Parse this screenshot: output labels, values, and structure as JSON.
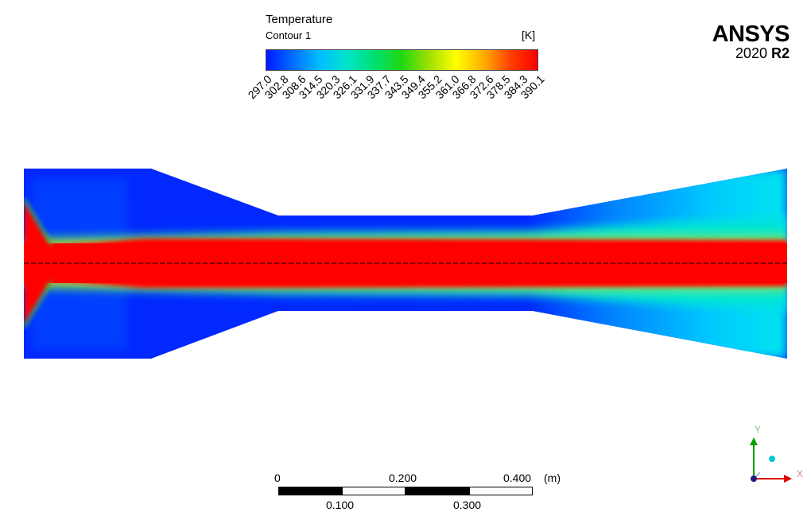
{
  "legend": {
    "title": "Temperature",
    "subtitle": "Contour 1",
    "unit": "[K]",
    "ticks": [
      "297.0",
      "302.8",
      "308.6",
      "314.5",
      "320.3",
      "326.1",
      "331.9",
      "337.7",
      "343.5",
      "349.4",
      "355.2",
      "361.0",
      "366.8",
      "372.6",
      "378.5",
      "384.3",
      "390.1"
    ],
    "colormap": [
      "#0018ff",
      "#0070ff",
      "#00c0ff",
      "#00e4c8",
      "#00e070",
      "#20d810",
      "#a0e000",
      "#ffff00",
      "#ffb000",
      "#ff4000",
      "#ff0000"
    ]
  },
  "logo": {
    "brand": "ANSYS",
    "version_year": "2020",
    "version_release": "R2"
  },
  "scale": {
    "top_labels": [
      "0",
      "0.200",
      "0.400"
    ],
    "unit": "(m)",
    "bottom_labels": [
      "0.100",
      "0.300"
    ]
  },
  "axes": {
    "x_label": "X",
    "y_label": "Y"
  }
}
